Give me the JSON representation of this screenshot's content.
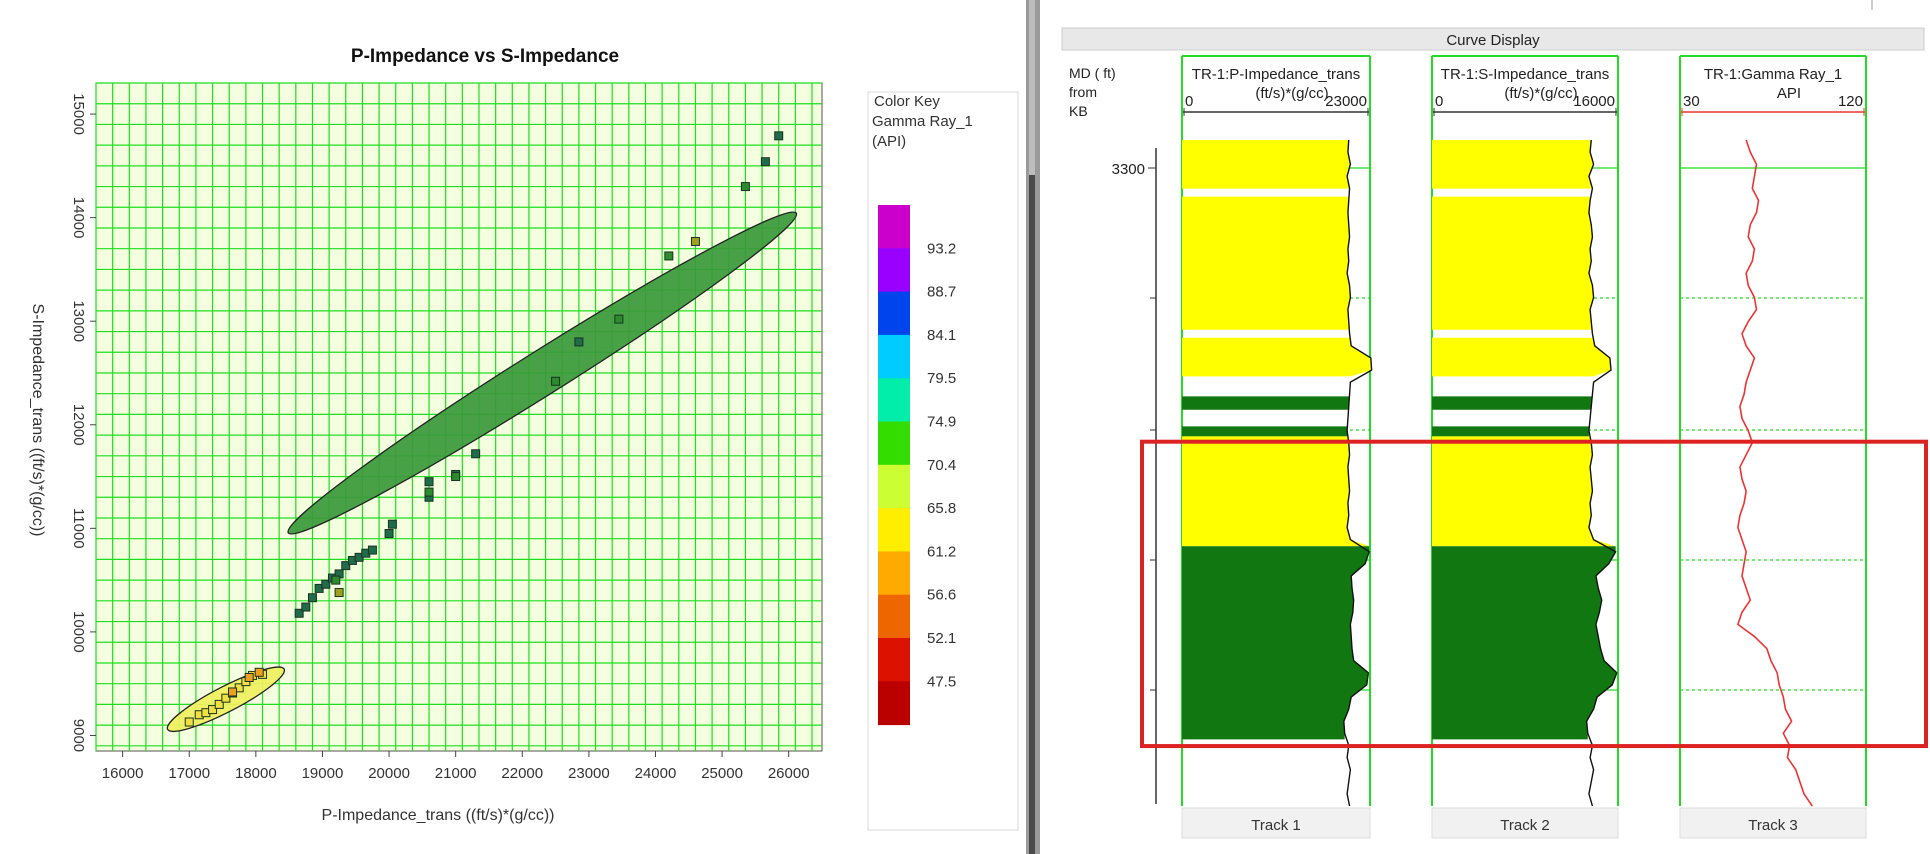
{
  "chart_data": [
    {
      "type": "scatter",
      "title": "P-Impedance vs S-Impedance",
      "xlabel": "P-Impedance_trans ((ft/s)*(g/cc))",
      "ylabel": "S-Impedance_trans ((ft/s)*(g/cc))",
      "xlim": [
        15600,
        26500
      ],
      "ylim": [
        8850,
        15300
      ],
      "x_ticks": [
        16000,
        17000,
        18000,
        19000,
        20000,
        21000,
        22000,
        23000,
        24000,
        25000,
        26000
      ],
      "y_ticks": [
        9000,
        10000,
        11000,
        12000,
        13000,
        14000,
        15000
      ],
      "grid": true,
      "legend": {
        "title_lines": [
          "Color Key",
          "Gamma Ray_1",
          "(API)"
        ],
        "labels": [
          "93.2",
          "88.7",
          "84.1",
          "79.5",
          "74.9",
          "70.4",
          "65.8",
          "61.2",
          "56.6",
          "52.1",
          "47.5"
        ],
        "colors": [
          "#cc00cc",
          "#9900ff",
          "#0044ee",
          "#00ccff",
          "#00eeaa",
          "#33dd00",
          "#ccff33",
          "#ffee00",
          "#ffaa00",
          "#ee6600",
          "#dd1100",
          "#bb0000"
        ]
      },
      "colors": {
        "grid": "#1fdd1f",
        "plot_bg": "#f4ffe0",
        "cluster_high": "#3a9a3a",
        "cluster_low": "#f0f060"
      },
      "clusters": [
        {
          "center": [
            22300,
            12500
          ],
          "axes": [
            4600,
            330
          ],
          "angle_deg": 34,
          "fill": "#3a9a3a"
        },
        {
          "center": [
            17550,
            9350
          ],
          "axes": [
            1000,
            190
          ],
          "angle_deg": 29,
          "fill": "#f0f060"
        }
      ],
      "series": [
        {
          "marker_color": "#1f6b4a",
          "points": [
            [
              18650,
              10180
            ],
            [
              18750,
              10240
            ],
            [
              18850,
              10330
            ],
            [
              18950,
              10420
            ],
            [
              19050,
              10460
            ],
            [
              19150,
              10520
            ],
            [
              19250,
              10560
            ],
            [
              19350,
              10640
            ],
            [
              19450,
              10690
            ],
            [
              19550,
              10720
            ],
            [
              19650,
              10760
            ],
            [
              19750,
              10790
            ],
            [
              20000,
              10950
            ],
            [
              20050,
              11040
            ],
            [
              20600,
              11300
            ],
            [
              20600,
              11450
            ],
            [
              21000,
              11520
            ],
            [
              21300,
              11720
            ],
            [
              22850,
              12800
            ],
            [
              25650,
              14540
            ],
            [
              25850,
              14790
            ]
          ]
        },
        {
          "marker_color": "#2d8a2d",
          "points": [
            [
              19200,
              10500
            ],
            [
              20600,
              11350
            ],
            [
              21000,
              11500
            ],
            [
              22500,
              12420
            ],
            [
              23450,
              13020
            ],
            [
              24200,
              13630
            ],
            [
              25350,
              14300
            ]
          ]
        },
        {
          "marker_color": "#a0a020",
          "points": [
            [
              19250,
              10380
            ],
            [
              24600,
              13770
            ]
          ]
        },
        {
          "marker_color": "#f0e040",
          "points": [
            [
              17000,
              9130
            ],
            [
              17150,
              9200
            ],
            [
              17250,
              9220
            ],
            [
              17350,
              9250
            ],
            [
              17450,
              9300
            ],
            [
              17550,
              9360
            ],
            [
              17650,
              9410
            ],
            [
              17750,
              9460
            ],
            [
              17850,
              9520
            ],
            [
              17950,
              9580
            ],
            [
              18100,
              9590
            ]
          ]
        },
        {
          "marker_color": "#f0a020",
          "points": [
            [
              17650,
              9420
            ],
            [
              17900,
              9560
            ],
            [
              18050,
              9610
            ]
          ]
        }
      ]
    },
    {
      "type": "line",
      "title": "Curve Display",
      "depth_label_lines": [
        "MD ( ft)",
        "from",
        "KB"
      ],
      "depth_tick": "3300",
      "tracks": [
        {
          "name": "Track 1",
          "curve": "TR-1:P-Impedance_trans",
          "unit": "(ft/s)*(g/cc)",
          "min": "0",
          "max": "23000"
        },
        {
          "name": "Track 2",
          "curve": "TR-1:S-Impedance_trans",
          "unit": "(ft/s)*(g/cc)",
          "min": "0",
          "max": "16000"
        },
        {
          "name": "Track 3",
          "curve": "TR-1:Gamma Ray_1",
          "unit": "API",
          "min": "30",
          "max": "120"
        }
      ],
      "colors": {
        "high": "#ffff00",
        "low": "#117711",
        "gamma": "#ee3333",
        "grid": "#22dd22",
        "highlight": "#dd2222"
      },
      "p_impedance": [
        20400,
        20300,
        20600,
        20200,
        20500,
        20400,
        20300,
        20400,
        20500,
        20300,
        20400,
        20200,
        20500,
        20600,
        20300,
        20400,
        20500,
        20700,
        23100,
        23200,
        20600,
        20500,
        20400,
        20300,
        20200,
        20400,
        20500,
        20300,
        20400,
        20500,
        20300,
        20400,
        20200,
        20600,
        22900,
        22400,
        20700,
        20800,
        21000,
        20900,
        20600,
        20700,
        20800,
        21000,
        22800,
        22600,
        20700,
        20400,
        19800,
        19900,
        20400,
        20200,
        20600,
        20400,
        20200,
        20500
      ],
      "s_impedance": [
        13700,
        13600,
        13900,
        13500,
        13800,
        13600,
        13500,
        13700,
        13800,
        13600,
        13700,
        13500,
        13800,
        13900,
        13600,
        13700,
        13800,
        14000,
        15300,
        15400,
        13900,
        13800,
        13700,
        13600,
        13500,
        13700,
        13800,
        13600,
        13700,
        13800,
        13600,
        13700,
        13500,
        13900,
        15800,
        15200,
        14100,
        14300,
        14600,
        14400,
        14100,
        14300,
        14500,
        14800,
        15900,
        15500,
        14200,
        13900,
        13300,
        13400,
        13800,
        13600,
        13900,
        13700,
        13500,
        13800
      ],
      "gamma_ray": [
        62,
        64,
        67,
        66,
        65,
        68,
        67,
        64,
        63,
        66,
        65,
        62,
        63,
        66,
        67,
        63,
        60,
        62,
        66,
        64,
        62,
        61,
        59,
        60,
        63,
        65,
        62,
        59,
        60,
        62,
        61,
        59,
        58,
        60,
        62,
        61,
        60,
        62,
        64,
        60,
        58,
        66,
        72,
        74,
        77,
        78,
        80,
        81,
        84,
        80,
        83,
        82,
        86,
        88,
        90,
        94
      ],
      "lithology": [
        {
          "kind": "high",
          "from": 0,
          "to": 0.073
        },
        {
          "kind": "high",
          "from": 0.085,
          "to": 0.285
        },
        {
          "kind": "high",
          "from": 0.297,
          "to": 0.355
        },
        {
          "kind": "low",
          "from": 0.385,
          "to": 0.405
        },
        {
          "kind": "low",
          "from": 0.43,
          "to": 0.445
        },
        {
          "kind": "high",
          "from": 0.445,
          "to": 0.61
        },
        {
          "kind": "low",
          "from": 0.61,
          "to": 0.9
        }
      ],
      "highlight_interval": [
        0.453,
        0.91
      ]
    }
  ]
}
